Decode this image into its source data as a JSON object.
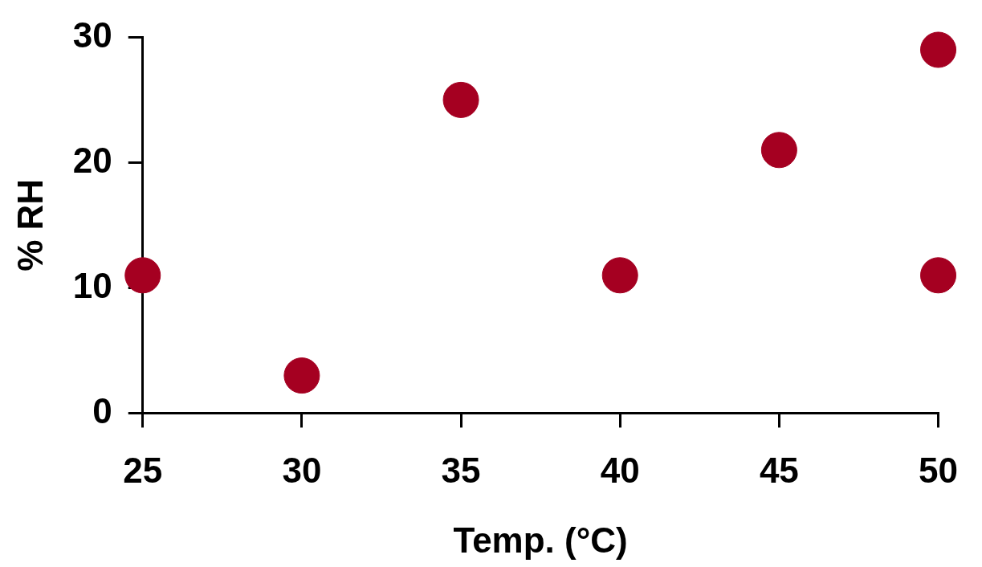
{
  "chart_data": {
    "type": "scatter",
    "xlabel": "Temp. (°C)",
    "ylabel": "% RH",
    "x": [
      25,
      30,
      35,
      40,
      45,
      50,
      50
    ],
    "series": [
      {
        "color": "#a50021",
        "values": [
          11,
          3,
          25,
          11,
          21,
          29,
          11
        ]
      }
    ],
    "xlim": [
      25,
      50
    ],
    "xticks": [
      25,
      30,
      35,
      40,
      45,
      50
    ],
    "ylim": [
      0,
      30
    ],
    "yticks": [
      0,
      10,
      20,
      30
    ],
    "grid": false,
    "legend": false,
    "marker": "circle"
  }
}
